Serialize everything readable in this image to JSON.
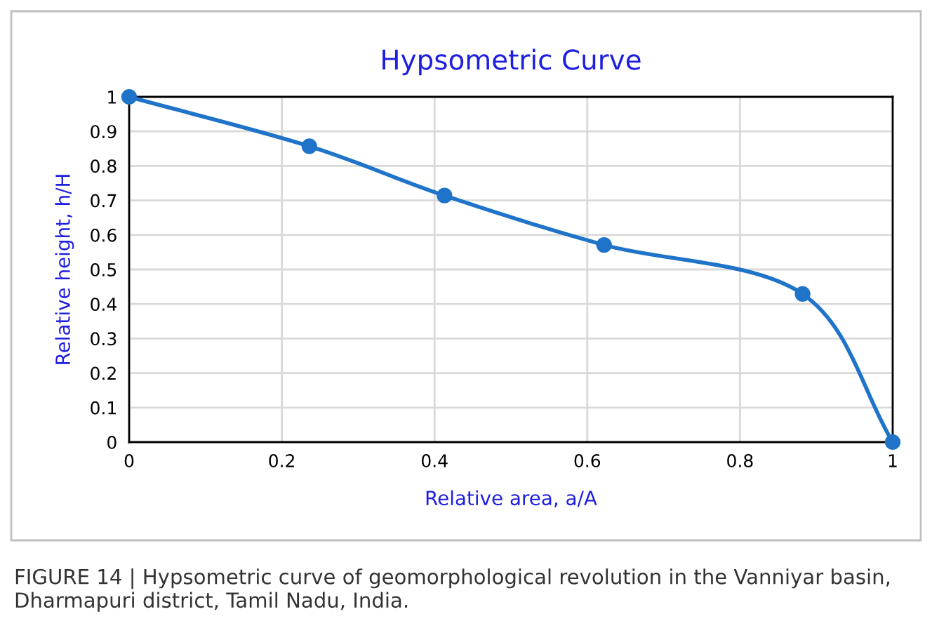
{
  "chart_data": {
    "type": "line",
    "title": "Hypsometric Curve",
    "xlabel": "Relative area, a/A",
    "ylabel": "Relative height, h/H",
    "x": [
      0,
      0.236,
      0.413,
      0.622,
      0.882,
      1
    ],
    "series": [
      {
        "color": "#1f73c8",
        "values": [
          1,
          0.857,
          0.714,
          0.571,
          0.429,
          0
        ]
      }
    ],
    "xlim": [
      0,
      1
    ],
    "xticks": [
      0,
      0.2,
      0.4,
      0.6,
      0.8,
      1
    ],
    "ylim": [
      0,
      1
    ],
    "yticks": [
      0,
      0.1,
      0.2,
      0.3,
      0.4,
      0.5,
      0.6,
      0.7,
      0.8,
      0.9,
      1
    ],
    "grid": true,
    "marker": "circle",
    "line_style": "solid",
    "annotations": [
      "FIGURE 14 | Hypsometric curve of geomorphological revolution in the Vanniyar basin, Dharmapuri district, Tamil Nadu, India."
    ]
  }
}
